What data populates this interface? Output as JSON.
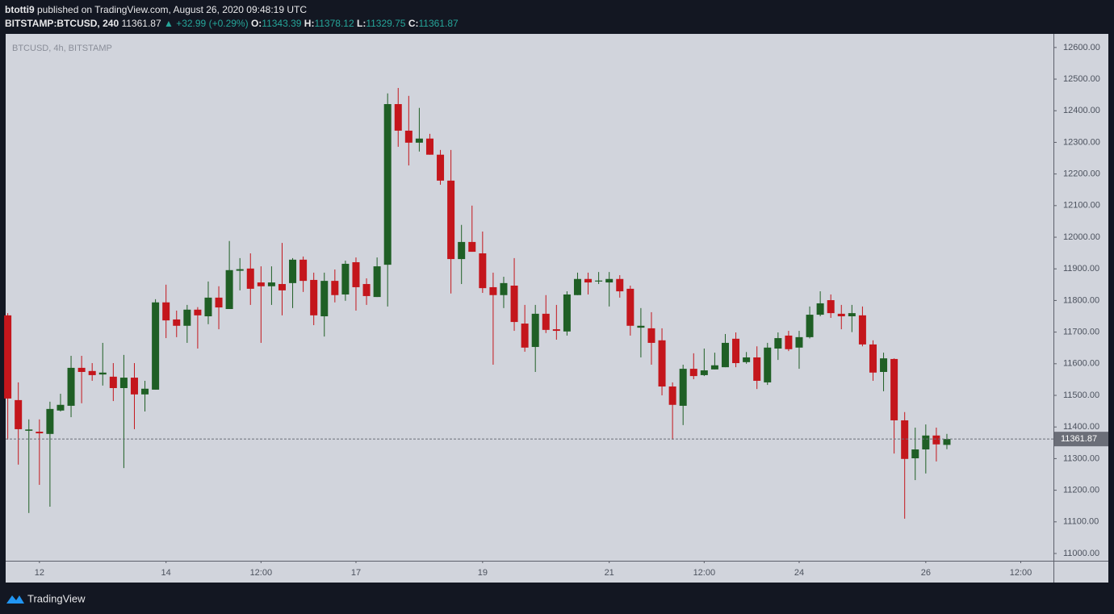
{
  "header": {
    "author": "btotti9",
    "published": "published on TradingView.com, August 26, 2020 09:48:19 UTC",
    "symbol": "BITSTAMP:BTCUSD, 240",
    "change": "▲ +32.99 (+0.29%)",
    "open_label": "O:",
    "high_label": "H:",
    "low_label": "L:",
    "close_label": "C:"
  },
  "chart_data": {
    "type": "candlestick",
    "title": "BTCUSD, 4h, BITSTAMP",
    "open": [
      11753,
      11485,
      11388,
      11385,
      11378,
      11452,
      11467,
      11587,
      11577,
      11566,
      11559,
      11523,
      11556,
      11503,
      11518,
      11794,
      11740,
      11720,
      11771,
      11750,
      11809,
      11773,
      11894,
      11901,
      11857,
      11845,
      11852,
      11855,
      11929,
      11865,
      11750,
      11862,
      11819,
      11921,
      11852,
      11811,
      11913,
      12421,
      12337,
      12299,
      12312,
      12261,
      12179,
      11931,
      11985,
      11949,
      11842,
      11817,
      11847,
      11727,
      11653,
      11758,
      11709,
      11702,
      11817,
      11868,
      11860,
      11857,
      11868,
      11837,
      11714,
      11712,
      11674,
      11528,
      11467,
      11584,
      11564,
      11582,
      11589,
      11679,
      11605,
      11620,
      11541,
      11648,
      11689,
      11651,
      11684,
      11755,
      11801,
      11758,
      11750,
      11753,
      11661,
      11574,
      11615,
      11421,
      11301,
      11329,
      11373,
      11343.39
    ],
    "high": [
      11760,
      11541,
      11424,
      11424,
      11480,
      11505,
      11625,
      11625,
      11602,
      11666,
      11602,
      11628,
      11602,
      11546,
      11804,
      11850,
      11768,
      11786,
      11779,
      11860,
      11845,
      11988,
      11934,
      11949,
      11908,
      11908,
      11982,
      11934,
      11939,
      11888,
      11888,
      11898,
      11926,
      11936,
      11870,
      11936,
      12455,
      12472,
      12447,
      12409,
      12327,
      12276,
      12276,
      12039,
      12100,
      12018,
      11888,
      11875,
      11934,
      11786,
      11786,
      11817,
      11786,
      11829,
      11888,
      11888,
      11890,
      11890,
      11880,
      11847,
      11776,
      11763,
      11712,
      11541,
      11597,
      11633,
      11648,
      11635,
      11694,
      11699,
      11637,
      11655,
      11666,
      11699,
      11704,
      11704,
      11781,
      11829,
      11819,
      11786,
      11786,
      11781,
      11674,
      11635,
      11617,
      11447,
      11398,
      11408,
      11398,
      11378.12
    ],
    "low": [
      11360,
      11281,
      11128,
      11217,
      11148,
      11449,
      11431,
      11475,
      11546,
      11531,
      11482,
      11270,
      11393,
      11449,
      11518,
      11681,
      11684,
      11666,
      11648,
      11725,
      11709,
      11773,
      11832,
      11786,
      11666,
      11786,
      11753,
      11776,
      11827,
      11722,
      11686,
      11794,
      11799,
      11768,
      11786,
      11811,
      11781,
      12286,
      12227,
      12271,
      12261,
      12166,
      11822,
      11852,
      11954,
      11824,
      11597,
      11776,
      11704,
      11638,
      11574,
      11697,
      11676,
      11689,
      11817,
      11819,
      11852,
      11781,
      11809,
      11689,
      11620,
      11597,
      11500,
      11360,
      11406,
      11551,
      11561,
      11582,
      11589,
      11589,
      11600,
      11520,
      11533,
      11612,
      11640,
      11584,
      11680,
      11750,
      11745,
      11709,
      11700,
      11655,
      11546,
      11513,
      11316,
      11110,
      11232,
      11253,
      11291,
      11329.75
    ],
    "close": [
      11490,
      11393,
      11392,
      11380,
      11457,
      11470,
      11587,
      11574,
      11564,
      11572,
      11523,
      11556,
      11503,
      11521,
      11794,
      11737,
      11720,
      11771,
      11753,
      11809,
      11778,
      11896,
      11899,
      11837,
      11845,
      11857,
      11832,
      11929,
      11862,
      11753,
      11862,
      11817,
      11916,
      11842,
      11814,
      11908,
      12421,
      12337,
      12299,
      12312,
      12261,
      12179,
      11931,
      11985,
      11954,
      11839,
      11817,
      11855,
      11732,
      11651,
      11758,
      11707,
      11704,
      11819,
      11868,
      11857,
      11863,
      11868,
      11829,
      11720,
      11720,
      11666,
      11528,
      11470,
      11584,
      11561,
      11579,
      11595,
      11666,
      11602,
      11620,
      11546,
      11651,
      11681,
      11646,
      11684,
      11755,
      11791,
      11760,
      11750,
      11760,
      11661,
      11572,
      11617,
      11421,
      11299,
      11329,
      11373,
      11345,
      11361.87
    ],
    "up_color": "#1f5f25",
    "down_color": "#c4161c",
    "xlim": [
      -0.2,
      99.1
    ],
    "xticks": [
      {
        "value": 3,
        "label": "12"
      },
      {
        "value": 15,
        "label": "14"
      },
      {
        "value": 24,
        "label": "12:00"
      },
      {
        "value": 33,
        "label": "17"
      },
      {
        "value": 45,
        "label": "19"
      },
      {
        "value": 57,
        "label": "21"
      },
      {
        "value": 66,
        "label": "12:00"
      },
      {
        "value": 75,
        "label": "24"
      },
      {
        "value": 87,
        "label": "26"
      },
      {
        "value": 96,
        "label": "12:00"
      }
    ],
    "ylim": [
      10977,
      12643
    ],
    "yticks": [
      {
        "value": 11000,
        "label": "11000.00"
      },
      {
        "value": 11100,
        "label": "11100.00"
      },
      {
        "value": 11200,
        "label": "11200.00"
      },
      {
        "value": 11300,
        "label": "11300.00"
      },
      {
        "value": 11400,
        "label": "11400.00"
      },
      {
        "value": 11500,
        "label": "11500.00"
      },
      {
        "value": 11600,
        "label": "11600.00"
      },
      {
        "value": 11700,
        "label": "11700.00"
      },
      {
        "value": 11800,
        "label": "11800.00"
      },
      {
        "value": 11900,
        "label": "11900.00"
      },
      {
        "value": 12000,
        "label": "12000.00"
      },
      {
        "value": 12100,
        "label": "12100.00"
      },
      {
        "value": 12200,
        "label": "12200.00"
      },
      {
        "value": 12300,
        "label": "12300.00"
      },
      {
        "value": 12400,
        "label": "12400.00"
      },
      {
        "value": 12500,
        "label": "12500.00"
      },
      {
        "value": 12600,
        "label": "12600.00"
      }
    ],
    "grid": false,
    "last_price_line": true
  },
  "footer": {
    "brand": "TradingView"
  }
}
